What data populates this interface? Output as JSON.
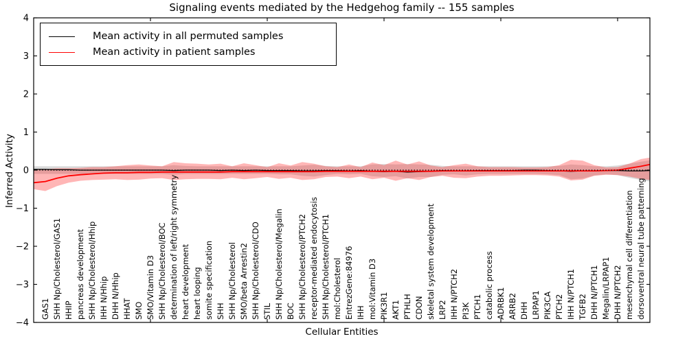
{
  "figure": {
    "title": "Signaling events mediated by the Hedgehog family -- 155 samples",
    "xlabel": "Cellular Entities",
    "ylabel": "Inferred Activity"
  },
  "legend": {
    "items": [
      {
        "label": "Mean activity in all permuted samples",
        "color": "#000000"
      },
      {
        "label": "Mean activity in patient samples",
        "color": "#ff0000"
      }
    ]
  },
  "chart_data": {
    "type": "line",
    "title": "Signaling events mediated by the Hedgehog family -- 155 samples",
    "xlabel": "Cellular Entities",
    "ylabel": "Inferred Activity",
    "ylim": [
      -4,
      4
    ],
    "yticks": [
      -4,
      -3,
      -2,
      -1,
      0,
      1,
      2,
      3,
      4
    ],
    "xticks": [
      10,
      20,
      30,
      40,
      50
    ],
    "grid": false,
    "legend_position": "upper left",
    "colors": {
      "permuted_line": "#000000",
      "patient_line": "#ff0000",
      "permuted_band": "rgba(128,128,128,0.30)",
      "patient_band": "rgba(255,40,40,0.34)",
      "zero_reference": "#000000"
    },
    "categories": [
      "GAS1",
      "SHH Np/Cholesterol/GAS1",
      "HHIP",
      "pancreas development",
      "SHH Np/Cholesterol/Hhip",
      "IHH N/Hhip",
      "DHH N/Hhip",
      "HHAT",
      "SMO",
      "SMO/Vitamin D3",
      "SHH Np/Cholesterol/BOC",
      "determination of left/right symmetry",
      "heart development",
      "heart looping",
      "somite specification",
      "SHH",
      "SHH Np/Cholesterol",
      "SMO/beta Arrestin2",
      "SHH Np/Cholesterol/CDO",
      "STIL",
      "SHH Np/Cholesterol/Megalin",
      "BOC",
      "SHH Np/Cholesterol/PTCH2",
      "receptor-mediated endocytosis",
      "SHH Np/Cholesterol/PTCH1",
      "mol:Cholesterol",
      "EntrezGene:84976",
      "IHH",
      "mol:Vitamin D3",
      "PIK3R1",
      "AKT1",
      "PTHLH",
      "CDON",
      "skeletal system development",
      "LRP2",
      "IHH N/PTCH2",
      "PI3K",
      "PTCH1",
      "catabolic process",
      "ADRBK1",
      "ARRB2",
      "DHH",
      "LRPAP1",
      "PIK3CA",
      "PTCH2",
      "IHH N/PTCH1",
      "TGFB2",
      "DHH N/PTCH1",
      "Megalin/LRPAP1",
      "DHH N/PTCH2",
      "mesenchymal cell differentiation",
      "dorsoventral neural tube patterning"
    ],
    "series": [
      {
        "name": "Mean activity in all permuted samples",
        "color": "#000000",
        "values": [
          0.02,
          0.01,
          0.01,
          0.0,
          0.0,
          0.0,
          0.0,
          0.0,
          0.0,
          0.0,
          0.0,
          -0.01,
          0.0,
          0.0,
          0.0,
          -0.01,
          0.0,
          -0.01,
          0.0,
          -0.01,
          -0.01,
          -0.01,
          -0.02,
          -0.02,
          -0.01,
          -0.01,
          -0.02,
          -0.01,
          -0.03,
          -0.04,
          -0.03,
          -0.05,
          -0.04,
          -0.03,
          -0.01,
          -0.02,
          -0.02,
          -0.01,
          -0.01,
          -0.01,
          -0.01,
          0.0,
          0.0,
          -0.01,
          -0.02,
          -0.03,
          -0.02,
          -0.02,
          -0.01,
          -0.01,
          -0.02,
          -0.02
        ]
      },
      {
        "name": "Mean activity in patient samples",
        "color": "#ff0000",
        "values": [
          -0.3,
          -0.21,
          -0.15,
          -0.12,
          -0.1,
          -0.08,
          -0.07,
          -0.07,
          -0.06,
          -0.06,
          -0.05,
          -0.05,
          -0.05,
          -0.05,
          -0.05,
          -0.05,
          -0.04,
          -0.04,
          -0.04,
          -0.04,
          -0.04,
          -0.04,
          -0.04,
          -0.04,
          -0.03,
          -0.03,
          -0.03,
          -0.03,
          -0.03,
          -0.03,
          -0.03,
          -0.03,
          -0.03,
          -0.03,
          -0.02,
          -0.02,
          -0.02,
          -0.02,
          -0.02,
          -0.02,
          -0.02,
          -0.02,
          -0.02,
          -0.02,
          -0.02,
          -0.02,
          -0.02,
          -0.02,
          -0.01,
          0.0,
          0.05,
          0.1
        ]
      }
    ],
    "bands": [
      {
        "name": "permuted samples band",
        "upper": [
          0.1,
          0.1,
          0.1,
          0.1,
          0.1,
          0.1,
          0.1,
          0.1,
          0.1,
          0.1,
          0.1,
          0.13,
          0.11,
          0.1,
          0.1,
          0.1,
          0.1,
          0.1,
          0.1,
          0.1,
          0.1,
          0.1,
          0.12,
          0.14,
          0.11,
          0.1,
          0.1,
          0.1,
          0.15,
          0.16,
          0.15,
          0.16,
          0.15,
          0.14,
          0.11,
          0.1,
          0.1,
          0.1,
          0.1,
          0.1,
          0.1,
          0.1,
          0.1,
          0.1,
          0.11,
          0.15,
          0.13,
          0.1,
          0.1,
          0.12,
          0.17,
          0.22
        ],
        "lower": [
          -0.1,
          -0.1,
          -0.1,
          -0.1,
          -0.1,
          -0.1,
          -0.1,
          -0.1,
          -0.1,
          -0.1,
          -0.1,
          -0.12,
          -0.1,
          -0.1,
          -0.1,
          -0.1,
          -0.1,
          -0.1,
          -0.1,
          -0.1,
          -0.11,
          -0.11,
          -0.15,
          -0.17,
          -0.13,
          -0.1,
          -0.11,
          -0.1,
          -0.16,
          -0.18,
          -0.16,
          -0.22,
          -0.18,
          -0.18,
          -0.12,
          -0.11,
          -0.14,
          -0.11,
          -0.1,
          -0.1,
          -0.1,
          -0.1,
          -0.1,
          -0.11,
          -0.13,
          -0.24,
          -0.22,
          -0.14,
          -0.11,
          -0.13,
          -0.2,
          -0.26
        ]
      },
      {
        "name": "patient samples band",
        "upper": [
          0.02,
          0.05,
          0.05,
          0.06,
          0.08,
          0.08,
          0.1,
          0.13,
          0.15,
          0.12,
          0.1,
          0.21,
          0.18,
          0.17,
          0.15,
          0.17,
          0.1,
          0.18,
          0.13,
          0.08,
          0.18,
          0.12,
          0.21,
          0.17,
          0.1,
          0.08,
          0.15,
          0.08,
          0.2,
          0.13,
          0.25,
          0.15,
          0.23,
          0.12,
          0.08,
          0.13,
          0.17,
          0.1,
          0.08,
          0.08,
          0.08,
          0.07,
          0.07,
          0.08,
          0.13,
          0.27,
          0.25,
          0.13,
          0.07,
          0.08,
          0.17,
          0.29
        ],
        "lower": [
          -0.55,
          -0.42,
          -0.33,
          -0.28,
          -0.26,
          -0.25,
          -0.24,
          -0.26,
          -0.25,
          -0.22,
          -0.21,
          -0.26,
          -0.24,
          -0.23,
          -0.23,
          -0.24,
          -0.2,
          -0.24,
          -0.21,
          -0.18,
          -0.23,
          -0.2,
          -0.26,
          -0.24,
          -0.18,
          -0.17,
          -0.21,
          -0.17,
          -0.24,
          -0.2,
          -0.28,
          -0.21,
          -0.26,
          -0.18,
          -0.15,
          -0.2,
          -0.21,
          -0.17,
          -0.15,
          -0.15,
          -0.14,
          -0.13,
          -0.13,
          -0.14,
          -0.17,
          -0.27,
          -0.25,
          -0.15,
          -0.12,
          -0.13,
          -0.17,
          -0.23
        ]
      }
    ],
    "edges": {
      "left": {
        "patient_mean": -0.33,
        "permuted_mean": 0.02,
        "patient_band_upper": 0.0,
        "patient_band_lower": -0.5,
        "permuted_band_upper": 0.1,
        "permuted_band_lower": -0.1
      },
      "right": {
        "patient_mean": 0.15,
        "permuted_mean": -0.01,
        "patient_band_upper": 0.33,
        "patient_band_lower": -0.26,
        "permuted_band_upper": 0.26,
        "permuted_band_lower": -0.3
      }
    },
    "zero_reference_line": {
      "y": 0,
      "style": "dotted",
      "color": "#000000"
    }
  }
}
